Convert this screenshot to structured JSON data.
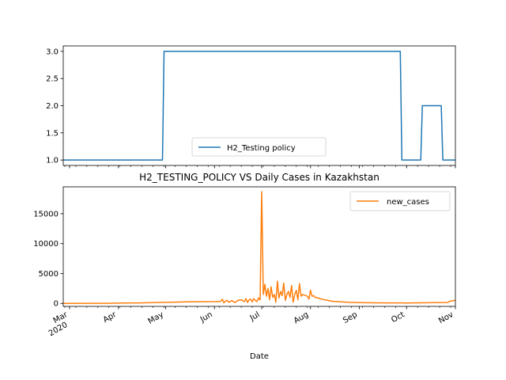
{
  "chart_data": [
    {
      "type": "line",
      "title": "",
      "xlabel": "",
      "ylabel": "",
      "xlim": [
        "2020-02-26",
        "2020-11-01"
      ],
      "ylim": [
        0.9,
        3.1
      ],
      "yticks": [
        "1.0",
        "1.5",
        "2.0",
        "2.5",
        "3.0"
      ],
      "grid": false,
      "legend": {
        "placement": "lower-center"
      },
      "series": [
        {
          "name": "H2_Testing policy",
          "color": "#1f77b4",
          "x": [
            "2020-02-26",
            "2020-04-29",
            "2020-04-30",
            "2020-09-27",
            "2020-09-28",
            "2020-10-10",
            "2020-10-11",
            "2020-10-23",
            "2020-10-24",
            "2020-11-01"
          ],
          "values": [
            1,
            1,
            3,
            3,
            1,
            1,
            2,
            2,
            1,
            1
          ]
        }
      ]
    },
    {
      "type": "line",
      "title": "H2_TESTING_POLICY VS Daily Cases in Kazakhstan",
      "xlabel": "Date",
      "ylabel": "",
      "xlim": [
        "2020-02-26",
        "2020-11-01"
      ],
      "ylim": [
        -500,
        19500
      ],
      "yticks": [
        "0",
        "5000",
        "10000",
        "15000"
      ],
      "xticks": [
        {
          "date": "2020-03-01",
          "label": "Mar",
          "sublabel": "2020"
        },
        {
          "date": "2020-04-01",
          "label": "Apr"
        },
        {
          "date": "2020-05-01",
          "label": "May"
        },
        {
          "date": "2020-06-01",
          "label": "Jun"
        },
        {
          "date": "2020-07-01",
          "label": "Jul"
        },
        {
          "date": "2020-08-01",
          "label": "Aug"
        },
        {
          "date": "2020-09-01",
          "label": "Sep"
        },
        {
          "date": "2020-10-01",
          "label": "Oct"
        },
        {
          "date": "2020-11-01",
          "label": "Nov"
        }
      ],
      "grid": false,
      "legend": {
        "placement": "top-right"
      },
      "series": [
        {
          "name": "new_cases",
          "color": "#ff7f0e",
          "x": [
            "2020-02-26",
            "2020-03-13",
            "2020-03-25",
            "2020-04-05",
            "2020-04-15",
            "2020-04-25",
            "2020-05-05",
            "2020-05-15",
            "2020-05-25",
            "2020-06-01",
            "2020-06-05",
            "2020-06-06",
            "2020-06-07",
            "2020-06-08",
            "2020-06-09",
            "2020-06-10",
            "2020-06-12",
            "2020-06-14",
            "2020-06-16",
            "2020-06-18",
            "2020-06-20",
            "2020-06-21",
            "2020-06-22",
            "2020-06-23",
            "2020-06-24",
            "2020-06-25",
            "2020-06-26",
            "2020-06-27",
            "2020-06-28",
            "2020-06-29",
            "2020-06-30",
            "2020-07-01",
            "2020-07-02",
            "2020-07-03",
            "2020-07-04",
            "2020-07-05",
            "2020-07-06",
            "2020-07-07",
            "2020-07-08",
            "2020-07-09",
            "2020-07-10",
            "2020-07-11",
            "2020-07-12",
            "2020-07-13",
            "2020-07-14",
            "2020-07-15",
            "2020-07-16",
            "2020-07-17",
            "2020-07-18",
            "2020-07-19",
            "2020-07-20",
            "2020-07-21",
            "2020-07-22",
            "2020-07-23",
            "2020-07-24",
            "2020-07-25",
            "2020-07-26",
            "2020-07-27",
            "2020-07-28",
            "2020-07-29",
            "2020-07-30",
            "2020-07-31",
            "2020-08-01",
            "2020-08-02",
            "2020-08-03",
            "2020-08-04",
            "2020-08-06",
            "2020-08-08",
            "2020-08-10",
            "2020-08-12",
            "2020-08-15",
            "2020-08-20",
            "2020-08-25",
            "2020-09-01",
            "2020-09-10",
            "2020-09-20",
            "2020-10-01",
            "2020-10-10",
            "2020-10-20",
            "2020-10-27",
            "2020-10-29",
            "2020-11-01"
          ],
          "values": [
            0,
            10,
            20,
            50,
            80,
            150,
            200,
            250,
            280,
            300,
            350,
            700,
            100,
            400,
            500,
            200,
            450,
            150,
            500,
            600,
            300,
            800,
            150,
            600,
            700,
            250,
            800,
            500,
            300,
            900,
            600,
            18700,
            1500,
            3200,
            1200,
            2500,
            600,
            2800,
            1000,
            1500,
            200,
            3700,
            900,
            2000,
            1300,
            3400,
            500,
            1500,
            2000,
            1000,
            3000,
            200,
            1500,
            2200,
            600,
            3300,
            1200,
            1500,
            1400,
            1300,
            1200,
            700,
            2200,
            1200,
            1300,
            1000,
            900,
            700,
            600,
            500,
            350,
            250,
            180,
            120,
            90,
            80,
            70,
            90,
            120,
            150,
            400,
            500
          ]
        }
      ]
    }
  ]
}
